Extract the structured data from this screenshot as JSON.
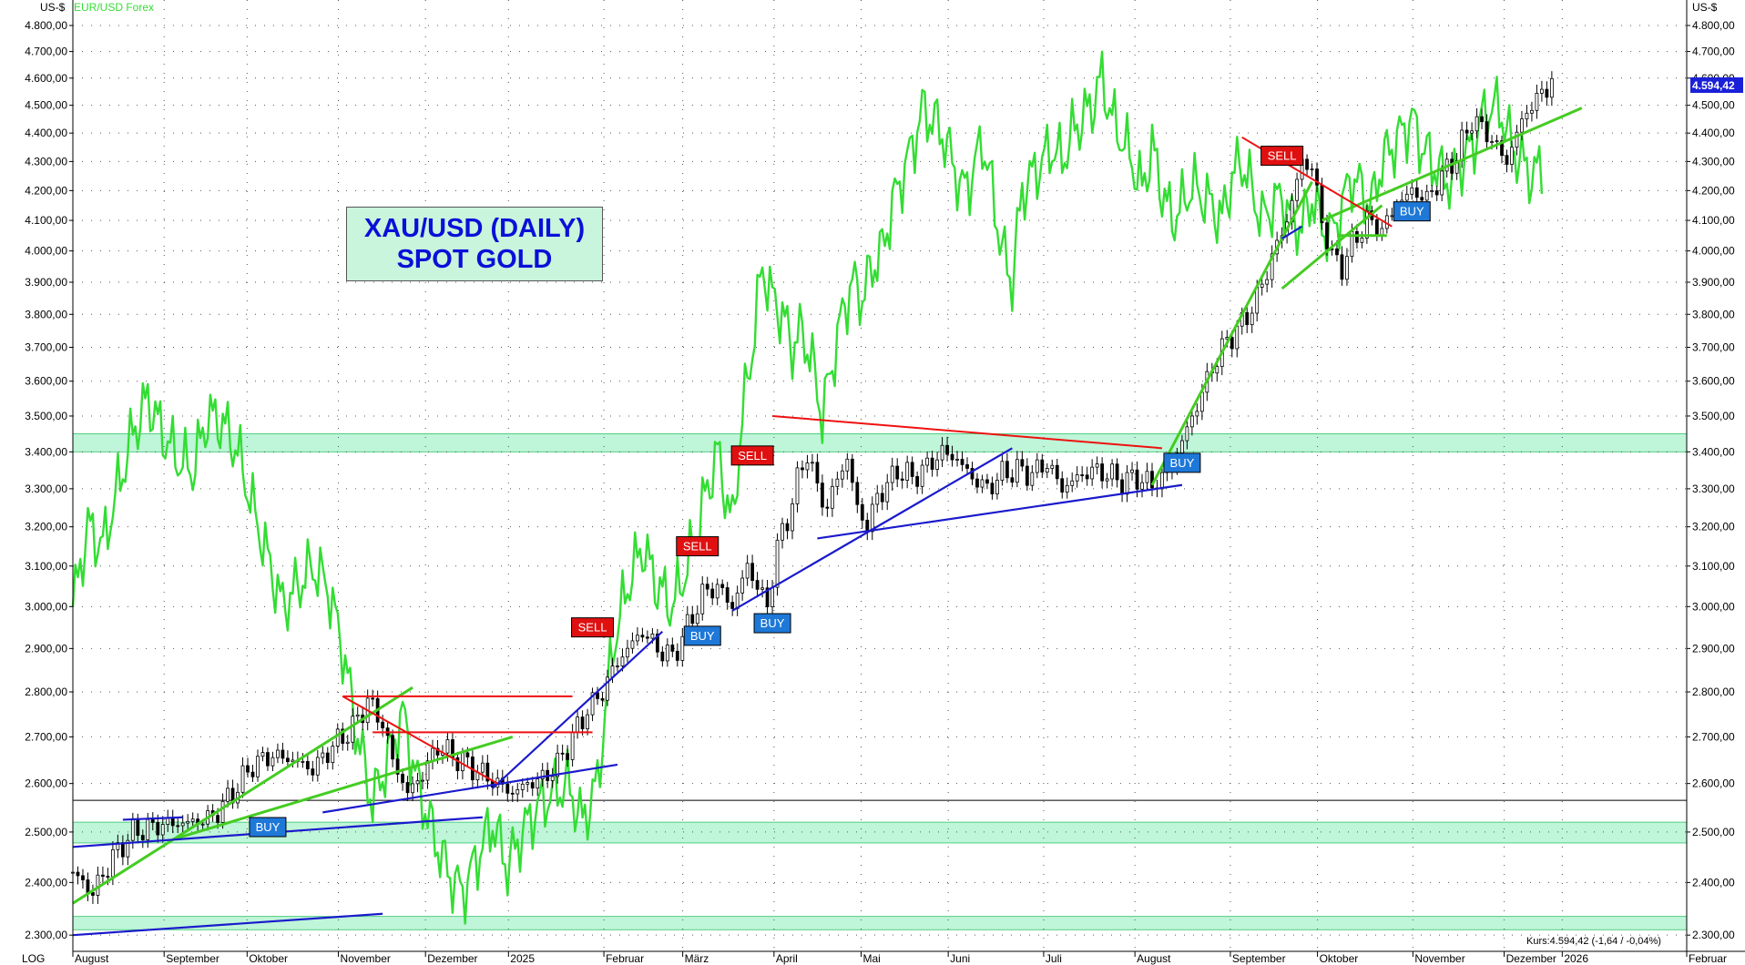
{
  "header": {
    "left_unit": "US-$",
    "right_unit": "US-$",
    "overlay_label": "EUR/USD Forex",
    "scale_label": "LOG"
  },
  "title_box": {
    "line1": "XAU/USD (DAILY)",
    "line2": "SPOT GOLD"
  },
  "footer": {
    "quote": "Kurs:4.594,42 (-1,64 / -0,04%)"
  },
  "price_tag": "4.594,42",
  "colors": {
    "candles": "#000000",
    "overlay": "#33dd33",
    "trend_green": "#44cc22",
    "trend_blue": "#1a1acc",
    "trend_red": "#ee1111",
    "zone": "#bff5d8",
    "buy": "#1e78d8",
    "sell": "#e01010",
    "grid": "#555555"
  },
  "chart_data": {
    "type": "candlestick",
    "scale": "log",
    "ylim": [
      2270,
      4900
    ],
    "y_ticks": [
      2300,
      2400,
      2500,
      2600,
      2700,
      2800,
      2900,
      3000,
      3100,
      3200,
      3300,
      3400,
      3500,
      3600,
      3700,
      3800,
      3900,
      4000,
      4100,
      4200,
      4300,
      4400,
      4500,
      4600,
      4700,
      4800
    ],
    "y_tick_labels": [
      "2.300,00",
      "2.400,00",
      "2.500,00",
      "2.600,00",
      "2.700,00",
      "2.800,00",
      "2.900,00",
      "3.000,00",
      "3.100,00",
      "3.200,00",
      "3.300,00",
      "3.400,00",
      "3.500,00",
      "3.600,00",
      "3.700,00",
      "3.800,00",
      "3.900,00",
      "4.000,00",
      "4.100,00",
      "4.200,00",
      "4.300,00",
      "4.400,00",
      "4.500,00",
      "4.600,00",
      "4.700,00",
      "4.800,00"
    ],
    "x_months": [
      "August",
      "September",
      "Oktober",
      "November",
      "Dezember",
      "2025",
      "Februar",
      "März",
      "April",
      "Mai",
      "Juni",
      "Juli",
      "August",
      "September",
      "Oktober",
      "November",
      "Dezember",
      "2026",
      "Februar"
    ],
    "price_path": [
      [
        0,
        2420
      ],
      [
        4,
        2380
      ],
      [
        8,
        2450
      ],
      [
        12,
        2500
      ],
      [
        18,
        2515
      ],
      [
        24,
        2520
      ],
      [
        28,
        2530
      ],
      [
        32,
        2580
      ],
      [
        36,
        2640
      ],
      [
        40,
        2660
      ],
      [
        44,
        2650
      ],
      [
        48,
        2630
      ],
      [
        52,
        2680
      ],
      [
        56,
        2720
      ],
      [
        59,
        2780
      ],
      [
        62,
        2730
      ],
      [
        64,
        2650
      ],
      [
        67,
        2580
      ],
      [
        70,
        2620
      ],
      [
        73,
        2680
      ],
      [
        76,
        2660
      ],
      [
        79,
        2640
      ],
      [
        82,
        2620
      ],
      [
        85,
        2600
      ],
      [
        88,
        2580
      ],
      [
        91,
        2600
      ],
      [
        94,
        2610
      ],
      [
        97,
        2640
      ],
      [
        100,
        2700
      ],
      [
        103,
        2760
      ],
      [
        106,
        2800
      ],
      [
        108,
        2850
      ],
      [
        111,
        2900
      ],
      [
        114,
        2940
      ],
      [
        117,
        2900
      ],
      [
        120,
        2880
      ],
      [
        123,
        2950
      ],
      [
        126,
        3030
      ],
      [
        129,
        3050
      ],
      [
        132,
        3000
      ],
      [
        135,
        3100
      ],
      [
        137,
        3050
      ],
      [
        139,
        3000
      ],
      [
        141,
        3150
      ],
      [
        143,
        3220
      ],
      [
        145,
        3320
      ],
      [
        147,
        3400
      ],
      [
        149,
        3300
      ],
      [
        151,
        3250
      ],
      [
        153,
        3330
      ],
      [
        155,
        3380
      ],
      [
        157,
        3250
      ],
      [
        159,
        3200
      ],
      [
        161,
        3280
      ],
      [
        163,
        3310
      ],
      [
        165,
        3350
      ],
      [
        168,
        3330
      ],
      [
        171,
        3360
      ],
      [
        174,
        3400
      ],
      [
        177,
        3380
      ],
      [
        180,
        3330
      ],
      [
        183,
        3300
      ],
      [
        186,
        3340
      ],
      [
        189,
        3350
      ],
      [
        192,
        3340
      ],
      [
        195,
        3370
      ],
      [
        198,
        3300
      ],
      [
        201,
        3330
      ],
      [
        204,
        3350
      ],
      [
        207,
        3340
      ],
      [
        210,
        3320
      ],
      [
        213,
        3330
      ],
      [
        216,
        3310
      ],
      [
        219,
        3340
      ],
      [
        222,
        3430
      ],
      [
        225,
        3530
      ],
      [
        228,
        3640
      ],
      [
        231,
        3720
      ],
      [
        234,
        3770
      ],
      [
        237,
        3850
      ],
      [
        240,
        3980
      ],
      [
        243,
        4100
      ],
      [
        246,
        4300
      ],
      [
        248,
        4280
      ],
      [
        250,
        4100
      ],
      [
        252,
        3980
      ],
      [
        254,
        3950
      ],
      [
        256,
        4020
      ],
      [
        259,
        4100
      ],
      [
        262,
        4070
      ],
      [
        265,
        4150
      ],
      [
        268,
        4200
      ],
      [
        271,
        4170
      ],
      [
        274,
        4250
      ],
      [
        277,
        4320
      ],
      [
        280,
        4450
      ],
      [
        283,
        4400
      ],
      [
        285,
        4350
      ],
      [
        287,
        4300
      ],
      [
        289,
        4400
      ],
      [
        291,
        4480
      ],
      [
        293,
        4520
      ],
      [
        296,
        4594
      ]
    ],
    "overlay_eurusd": [
      [
        0,
        3000
      ],
      [
        3,
        3200
      ],
      [
        6,
        3150
      ],
      [
        9,
        3300
      ],
      [
        12,
        3450
      ],
      [
        15,
        3550
      ],
      [
        18,
        3450
      ],
      [
        21,
        3380
      ],
      [
        24,
        3350
      ],
      [
        27,
        3500
      ],
      [
        30,
        3480
      ],
      [
        33,
        3400
      ],
      [
        36,
        3250
      ],
      [
        39,
        3120
      ],
      [
        42,
        3000
      ],
      [
        45,
        3050
      ],
      [
        48,
        3100
      ],
      [
        51,
        3050
      ],
      [
        54,
        2900
      ],
      [
        57,
        2700
      ],
      [
        60,
        2560
      ],
      [
        63,
        2650
      ],
      [
        66,
        2750
      ],
      [
        69,
        2600
      ],
      [
        72,
        2500
      ],
      [
        75,
        2420
      ],
      [
        78,
        2380
      ],
      [
        81,
        2450
      ],
      [
        84,
        2520
      ],
      [
        87,
        2430
      ],
      [
        90,
        2500
      ],
      [
        93,
        2550
      ],
      [
        96,
        2580
      ],
      [
        99,
        2600
      ],
      [
        102,
        2520
      ],
      [
        105,
        2600
      ],
      [
        108,
        2900
      ],
      [
        111,
        3050
      ],
      [
        114,
        3150
      ],
      [
        117,
        3050
      ],
      [
        120,
        3000
      ],
      [
        123,
        3100
      ],
      [
        126,
        3250
      ],
      [
        129,
        3400
      ],
      [
        132,
        3200
      ],
      [
        134,
        3500
      ],
      [
        136,
        3700
      ],
      [
        138,
        3950
      ],
      [
        140,
        3850
      ],
      [
        142,
        3800
      ],
      [
        144,
        3700
      ],
      [
        146,
        3750
      ],
      [
        148,
        3650
      ],
      [
        150,
        3500
      ],
      [
        152,
        3650
      ],
      [
        154,
        3800
      ],
      [
        156,
        3900
      ],
      [
        158,
        3850
      ],
      [
        160,
        3950
      ],
      [
        162,
        4000
      ],
      [
        164,
        4150
      ],
      [
        166,
        4250
      ],
      [
        168,
        4350
      ],
      [
        170,
        4480
      ],
      [
        172,
        4450
      ],
      [
        174,
        4400
      ],
      [
        176,
        4300
      ],
      [
        178,
        4200
      ],
      [
        180,
        4250
      ],
      [
        182,
        4380
      ],
      [
        184,
        4200
      ],
      [
        186,
        4000
      ],
      [
        188,
        3900
      ],
      [
        190,
        4200
      ],
      [
        192,
        4250
      ],
      [
        194,
        4300
      ],
      [
        196,
        4350
      ],
      [
        198,
        4300
      ],
      [
        200,
        4400
      ],
      [
        202,
        4450
      ],
      [
        204,
        4500
      ],
      [
        206,
        4600
      ],
      [
        208,
        4450
      ],
      [
        210,
        4380
      ],
      [
        212,
        4300
      ],
      [
        214,
        4200
      ],
      [
        216,
        4350
      ],
      [
        218,
        4200
      ],
      [
        220,
        4100
      ],
      [
        222,
        4150
      ],
      [
        224,
        4220
      ],
      [
        226,
        4180
      ],
      [
        228,
        4150
      ],
      [
        230,
        4100
      ],
      [
        232,
        4250
      ],
      [
        234,
        4300
      ],
      [
        236,
        4200
      ],
      [
        238,
        4100
      ],
      [
        240,
        4150
      ],
      [
        242,
        4180
      ],
      [
        244,
        4100
      ],
      [
        246,
        4080
      ],
      [
        248,
        4180
      ],
      [
        250,
        4080
      ],
      [
        252,
        4050
      ],
      [
        254,
        4150
      ],
      [
        256,
        4250
      ],
      [
        258,
        4200
      ],
      [
        260,
        4150
      ],
      [
        262,
        4300
      ],
      [
        264,
        4350
      ],
      [
        266,
        4400
      ],
      [
        268,
        4450
      ],
      [
        270,
        4350
      ],
      [
        272,
        4300
      ],
      [
        274,
        4250
      ],
      [
        276,
        4230
      ],
      [
        278,
        4300
      ],
      [
        280,
        4350
      ],
      [
        282,
        4450
      ],
      [
        284,
        4500
      ],
      [
        286,
        4470
      ],
      [
        288,
        4350
      ],
      [
        290,
        4300
      ],
      [
        292,
        4250
      ],
      [
        294,
        4280
      ]
    ],
    "zones": [
      [
        2310,
        2335
      ],
      [
        2478,
        2520
      ],
      [
        3400,
        3450
      ]
    ],
    "horizontal_line": 2565,
    "signals": [
      {
        "label": "BUY",
        "x": 39,
        "price": 2510
      },
      {
        "label": "SELL",
        "x": 104,
        "price": 2950
      },
      {
        "label": "SELL",
        "x": 125,
        "price": 3150
      },
      {
        "label": "BUY",
        "x": 126,
        "price": 2930
      },
      {
        "label": "SELL",
        "x": 136,
        "price": 3390
      },
      {
        "label": "BUY",
        "x": 140,
        "price": 2960
      },
      {
        "label": "BUY",
        "x": 222,
        "price": 3370
      },
      {
        "label": "SELL",
        "x": 242,
        "price": 4320
      },
      {
        "label": "BUY",
        "x": 268,
        "price": 4130
      }
    ],
    "trendlines_green": [
      [
        [
          0,
          2360
        ],
        [
          68,
          2810
        ]
      ],
      [
        [
          20,
          2485
        ],
        [
          88,
          2700
        ]
      ],
      [
        [
          216,
          3310
        ],
        [
          248,
          4230
        ]
      ],
      [
        [
          242,
          3880
        ],
        [
          262,
          4150
        ]
      ],
      [
        [
          250,
          4100
        ],
        [
          302,
          4490
        ]
      ],
      [
        [
          253,
          4050
        ],
        [
          263,
          4050
        ]
      ]
    ],
    "trendlines_blue": [
      [
        [
          0,
          2470
        ],
        [
          82,
          2530
        ]
      ],
      [
        [
          0,
          2300
        ],
        [
          62,
          2340
        ]
      ],
      [
        [
          10,
          2525
        ],
        [
          22,
          2530
        ]
      ],
      [
        [
          50,
          2540
        ],
        [
          109,
          2640
        ]
      ],
      [
        [
          84,
          2590
        ],
        [
          118,
          2940
        ]
      ],
      [
        [
          132,
          2990
        ],
        [
          188,
          3410
        ]
      ],
      [
        [
          149,
          3170
        ],
        [
          222,
          3310
        ]
      ],
      [
        [
          242,
          4040
        ],
        [
          246,
          4080
        ]
      ]
    ],
    "trendlines_red": [
      [
        [
          54,
          2790
        ],
        [
          85,
          2600
        ]
      ],
      [
        [
          54,
          2790
        ],
        [
          100,
          2790
        ]
      ],
      [
        [
          60,
          2710
        ],
        [
          104,
          2710
        ]
      ],
      [
        [
          140,
          3500
        ],
        [
          218,
          3410
        ]
      ],
      [
        [
          234,
          4385
        ],
        [
          264,
          4080
        ]
      ]
    ]
  }
}
